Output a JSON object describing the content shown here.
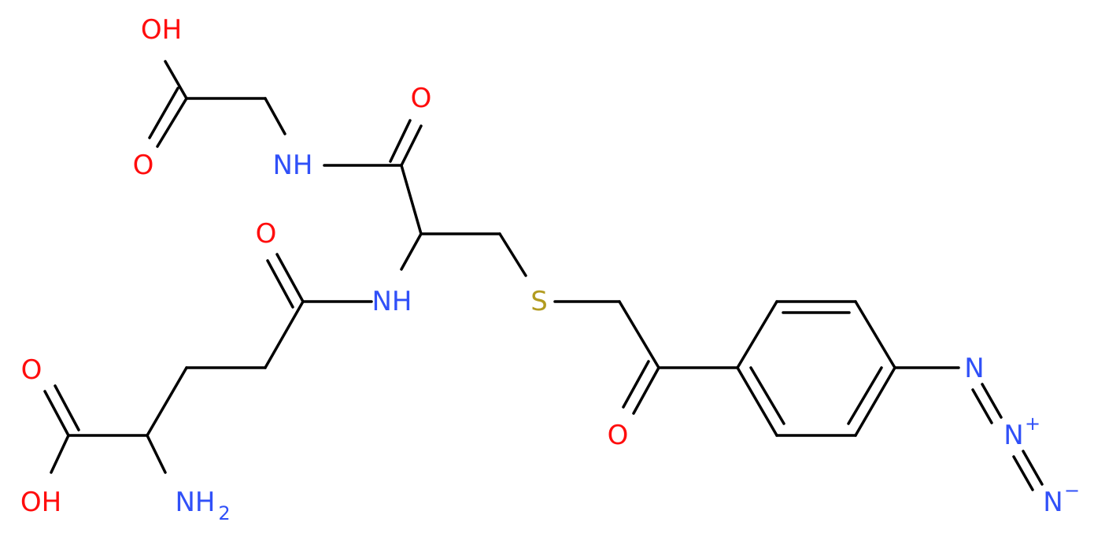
{
  "atoms": [
    {
      "label": "OH"
    },
    {
      "label": "O"
    },
    {
      "label": "NH"
    },
    {
      "label": "O"
    },
    {
      "label": "O"
    },
    {
      "label": "NH"
    },
    {
      "label": "S"
    },
    {
      "label": "O"
    },
    {
      "label": "OH"
    },
    {
      "label": "NH",
      "sub": "2"
    },
    {
      "label": "O"
    },
    {
      "label": "N"
    },
    {
      "label": "N",
      "charge": "+"
    },
    {
      "label": "N",
      "charge": "−"
    }
  ]
}
